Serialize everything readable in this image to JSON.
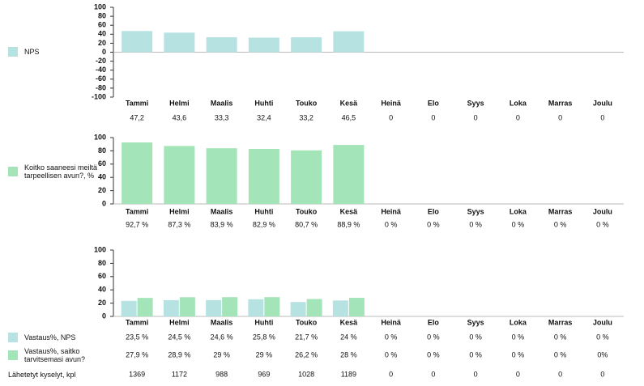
{
  "chart_data": [
    {
      "type": "bar",
      "categories": [
        "Tammi",
        "Helmi",
        "Maalis",
        "Huhti",
        "Touko",
        "Kesä",
        "Heinä",
        "Elo",
        "Syys",
        "Loka",
        "Marras",
        "Joulu"
      ],
      "series": [
        {
          "name": "NPS",
          "color": "#b7e2e2",
          "values": [
            47.2,
            43.6,
            33.3,
            32.4,
            33.2,
            46.5,
            0,
            0,
            0,
            0,
            0,
            0
          ],
          "value_labels": [
            "47,2",
            "43,6",
            "33,3",
            "32,4",
            "33,2",
            "46,5",
            "0",
            "0",
            "0",
            "0",
            "0",
            "0"
          ]
        }
      ],
      "ylim": [
        -100,
        100
      ],
      "yticks": [
        -100,
        -80,
        -60,
        -40,
        -20,
        0,
        20,
        40,
        60,
        80,
        100
      ]
    },
    {
      "type": "bar",
      "categories": [
        "Tammi",
        "Helmi",
        "Maalis",
        "Huhti",
        "Touko",
        "Kesä",
        "Heinä",
        "Elo",
        "Syys",
        "Loka",
        "Marras",
        "Joulu"
      ],
      "series": [
        {
          "name": "Koitko saaneesi meiltä tarpeellisen avun?, %",
          "color": "#a4e4b9",
          "values": [
            92.7,
            87.3,
            83.9,
            82.9,
            80.7,
            88.9,
            0,
            0,
            0,
            0,
            0,
            0
          ],
          "value_labels": [
            "92,7 %",
            "87,3 %",
            "83,9 %",
            "82,9 %",
            "80,7 %",
            "88,9 %",
            "0 %",
            "0 %",
            "0 %",
            "0 %",
            "0 %",
            "0 %"
          ]
        }
      ],
      "ylim": [
        0,
        100
      ],
      "yticks": [
        0,
        20,
        40,
        60,
        80,
        100
      ]
    },
    {
      "type": "bar",
      "categories": [
        "Tammi",
        "Helmi",
        "Maalis",
        "Huhti",
        "Touko",
        "Kesä",
        "Heinä",
        "Elo",
        "Syys",
        "Loka",
        "Marras",
        "Joulu"
      ],
      "series": [
        {
          "name": "Vastaus%, NPS",
          "color": "#b7e2e2",
          "values": [
            23.5,
            24.5,
            24.6,
            25.8,
            21.7,
            24,
            0,
            0,
            0,
            0,
            0,
            0
          ],
          "value_labels": [
            "23,5 %",
            "24,5 %",
            "24,6 %",
            "25,8 %",
            "21,7 %",
            "24 %",
            "0 %",
            "0 %",
            "0 %",
            "0 %",
            "0 %",
            "0 %"
          ]
        },
        {
          "name": "Vastaus%, saitko tarvitsemasi avun?",
          "color": "#a4e4b9",
          "values": [
            27.9,
            28.9,
            29,
            29,
            26.2,
            28,
            0,
            0,
            0,
            0,
            0,
            0
          ],
          "value_labels": [
            "27,9 %",
            "28,9 %",
            "29 %",
            "29 %",
            "26,2 %",
            "28 %",
            "0 %",
            "0 %",
            "0 %",
            "0 %",
            "0 %",
            "0%"
          ]
        }
      ],
      "extra_rows": [
        {
          "name": "Lähetetyt kyselyt, kpl",
          "values": [
            1369,
            1172,
            988,
            969,
            1028,
            1189,
            0,
            0,
            0,
            0,
            0,
            0
          ]
        }
      ],
      "ylim": [
        0,
        100
      ],
      "yticks": [
        0,
        20,
        40,
        60,
        80,
        100
      ]
    }
  ]
}
